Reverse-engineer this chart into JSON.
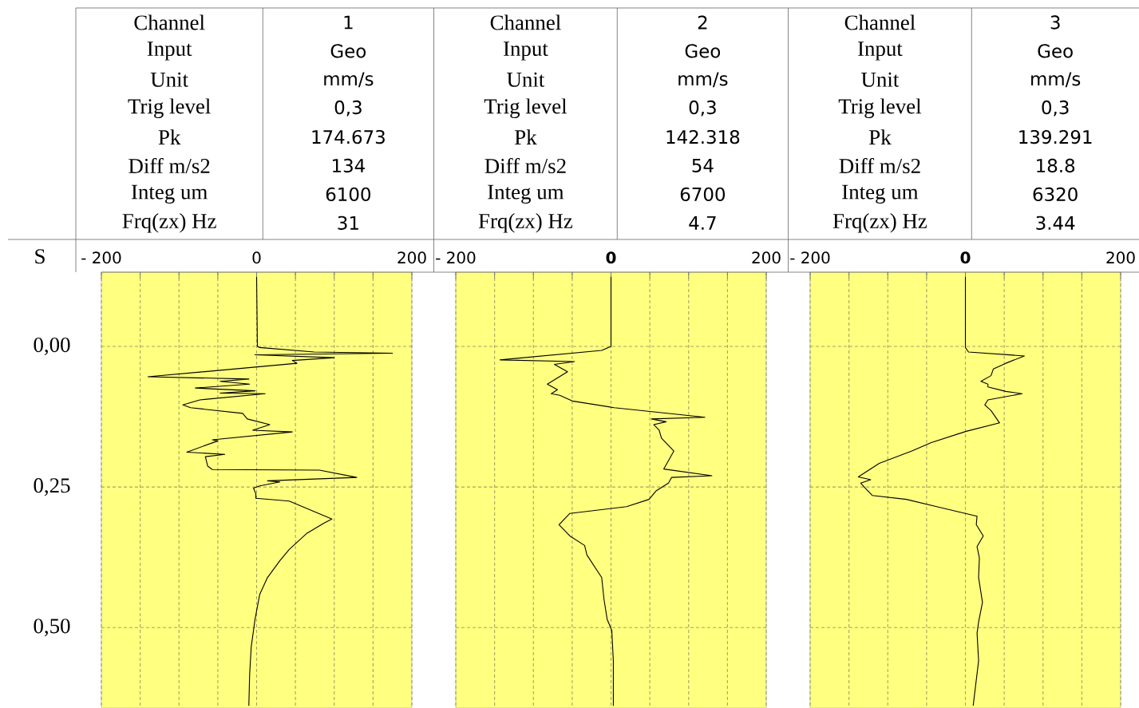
{
  "chart_data": [
    {
      "type": "line",
      "ylabel": "S",
      "annotations": [
        "Channel",
        "1",
        "Input",
        "Geo",
        "Unit",
        "mm/s",
        "Trig level",
        "0,3",
        "Pk",
        "174.673",
        "Diff m/s2",
        "134",
        "Integ um",
        "6100",
        "Frq(zx) Hz",
        "31"
      ],
      "xlim": [
        -200,
        200
      ],
      "xticks": [
        {
          "value": -200,
          "label": "- 200"
        },
        {
          "value": -150,
          "label": null
        },
        {
          "value": -100,
          "label": null
        },
        {
          "value": -50,
          "label": null
        },
        0,
        {
          "value": 50,
          "label": null
        },
        {
          "value": 100,
          "label": null
        },
        {
          "value": 150,
          "label": null
        },
        200
      ],
      "ylim": [
        0.643,
        -0.132
      ],
      "yticks": [
        {
          "value": 0,
          "label": "0,00"
        },
        {
          "value": 0.25,
          "label": "0,25"
        },
        {
          "value": 0.5,
          "label": "0,50"
        }
      ],
      "grid": true,
      "series": [
        {
          "color": "#000000",
          "x": [
            0,
            1,
            4,
            74,
            175,
            -2,
            100,
            46,
            52,
            -140,
            -10,
            -47,
            -9,
            -79,
            -2,
            -47,
            11,
            -73,
            -95,
            -85,
            -18,
            -12,
            17,
            -5,
            46,
            -57,
            -50,
            -90,
            -41,
            -66,
            -63,
            -57,
            81,
            129,
            14,
            30,
            4,
            -4,
            -1,
            -1,
            42,
            97,
            87,
            65,
            42,
            30,
            14,
            4,
            -2,
            -7,
            -9,
            -10
          ],
          "values": [
            -0.124,
            0,
            0.002,
            0.01,
            0.012,
            0.015,
            0.02,
            0.025,
            0.03,
            0.054,
            0.058,
            0.062,
            0.067,
            0.074,
            0.079,
            0.083,
            0.084,
            0.095,
            0.104,
            0.109,
            0.119,
            0.129,
            0.139,
            0.149,
            0.152,
            0.166,
            0.168,
            0.188,
            0.192,
            0.196,
            0.213,
            0.219,
            0.22,
            0.233,
            0.239,
            0.241,
            0.248,
            0.252,
            0.262,
            0.27,
            0.275,
            0.307,
            0.314,
            0.332,
            0.361,
            0.381,
            0.411,
            0.441,
            0.485,
            0.535,
            0.584,
            0.639
          ]
        }
      ]
    },
    {
      "type": "line",
      "tick_labels": "x",
      "annotations": [
        "Channel",
        "2",
        "Input",
        "Geo",
        "Unit",
        "mm/s",
        "Trig level",
        "0,3",
        "Pk",
        "142.318",
        "Diff m/s2",
        "54",
        "Integ um",
        "6700",
        "Frq(zx) Hz",
        "4.7"
      ],
      "xlim": [
        -200,
        200
      ],
      "xticks": [
        {
          "value": -200,
          "label": "- 200"
        },
        {
          "value": -150,
          "label": null
        },
        {
          "value": -100,
          "label": null
        },
        {
          "value": -50,
          "label": null
        },
        {
          "value": 0,
          "label": "**0**"
        },
        {
          "value": 50,
          "label": null
        },
        {
          "value": 100,
          "label": null
        },
        {
          "value": 150,
          "label": null
        },
        200
      ],
      "ylim": [
        0.643,
        -0.132
      ],
      "yticks": [
        {
          "value": 0,
          "label": null
        },
        {
          "value": 0.25,
          "label": null
        },
        {
          "value": 0.5,
          "label": null
        }
      ],
      "grid": true,
      "series": [
        {
          "color": "#000000",
          "x": [
            0,
            0,
            -12,
            -143,
            -47,
            -73,
            -56,
            -82,
            -69,
            -77,
            -66,
            -50,
            4,
            121,
            52,
            71,
            55,
            62,
            65,
            81,
            68,
            130,
            78,
            74,
            58,
            49,
            20,
            -53,
            -67,
            -53,
            -34,
            -31,
            -12,
            -9,
            -5,
            1,
            3,
            3
          ],
          "values": [
            -0.124,
            0,
            0.007,
            0.024,
            0.027,
            0.032,
            0.045,
            0.067,
            0.077,
            0.084,
            0.087,
            0.097,
            0.109,
            0.126,
            0.129,
            0.134,
            0.139,
            0.149,
            0.163,
            0.186,
            0.218,
            0.23,
            0.233,
            0.243,
            0.257,
            0.272,
            0.285,
            0.297,
            0.317,
            0.337,
            0.354,
            0.371,
            0.411,
            0.45,
            0.485,
            0.505,
            0.559,
            0.639
          ]
        }
      ]
    },
    {
      "type": "line",
      "tick_labels": "x",
      "annotations": [
        "Channel",
        "3",
        "Input",
        "Geo",
        "Unit",
        "mm/s",
        "Trig level",
        "0,3",
        "Pk",
        "139.291",
        "Diff m/s2",
        "18.8",
        "Integ um",
        "6320",
        "Frq(zx) Hz",
        "3.44"
      ],
      "xlim": [
        -200,
        200
      ],
      "xticks": [
        {
          "value": -200,
          "label": "- 200"
        },
        {
          "value": -150,
          "label": null
        },
        {
          "value": -100,
          "label": null
        },
        {
          "value": -50,
          "label": null
        },
        {
          "value": 0,
          "label": "**0**"
        },
        {
          "value": 50,
          "label": null
        },
        {
          "value": 100,
          "label": null
        },
        {
          "value": 150,
          "label": null
        },
        200
      ],
      "ylim": [
        0.643,
        -0.132
      ],
      "yticks": [
        {
          "value": 0,
          "label": null
        },
        {
          "value": 0.25,
          "label": null
        },
        {
          "value": 0.5,
          "label": null
        }
      ],
      "grid": true,
      "series": [
        {
          "color": "#000000",
          "x": [
            0,
            0,
            4,
            76,
            52,
            36,
            33,
            20,
            29,
            29,
            52,
            73,
            29,
            25,
            33,
            44,
            1,
            -44,
            -69,
            -111,
            -138,
            -122,
            -135,
            -127,
            -120,
            -76,
            -37,
            15,
            14,
            23,
            15,
            18,
            17,
            22,
            17,
            15,
            17,
            10
          ],
          "values": [
            -0.124,
            0.002,
            0.01,
            0.017,
            0.03,
            0.04,
            0.052,
            0.062,
            0.067,
            0.072,
            0.08,
            0.084,
            0.095,
            0.104,
            0.114,
            0.136,
            0.151,
            0.171,
            0.186,
            0.208,
            0.232,
            0.237,
            0.243,
            0.255,
            0.265,
            0.272,
            0.285,
            0.302,
            0.317,
            0.337,
            0.356,
            0.376,
            0.411,
            0.455,
            0.49,
            0.51,
            0.559,
            0.639
          ]
        }
      ]
    }
  ]
}
